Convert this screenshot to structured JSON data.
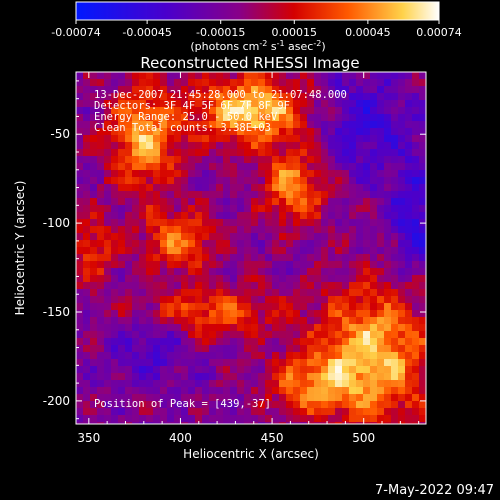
{
  "chart_data": {
    "type": "heatmap",
    "title": "Reconstructed RHESSI Image",
    "xlabel": "Heliocentric X (arcsec)",
    "ylabel": "Heliocentric Y (arcsec)",
    "xlim": [
      343,
      534
    ],
    "ylim": [
      -213,
      -15
    ],
    "x_ticks": [
      350,
      400,
      450,
      500
    ],
    "y_ticks": [
      -50,
      -100,
      -150,
      -200
    ],
    "colorbar": {
      "label_main": "(photons cm",
      "label_exp1": "-2",
      "label_mid1": " s",
      "label_exp2": "-1",
      "label_mid2": " asec",
      "label_exp3": "-2",
      "label_end": ")",
      "range": [
        -0.00074,
        0.00074
      ],
      "tick_values": [
        -0.00074,
        -0.00045,
        -0.00015,
        0.00015,
        0.00045,
        0.00074
      ],
      "tick_labels": [
        "-0.00074",
        "-0.00045",
        "-0.00015",
        "0.00015",
        "0.00045",
        "0.00074"
      ]
    },
    "annotations": [
      "13-Dec-2007 21:45:28.000 to 21:07:48.000",
      "Detectors: 3F 4F 5F 6F 7F 8F 9F",
      "Energy Range: 25.0 - 50.0 keV",
      "Clean     Total counts: 3.38E+03"
    ],
    "peak_label": "Position of Peak = [439,-37]",
    "peak": [
      439,
      -37
    ],
    "grid": false,
    "sources": [
      {
        "x": 380,
        "y": -52,
        "amp": 0.0006,
        "sx": 14,
        "sy": 22
      },
      {
        "x": 439,
        "y": -37,
        "amp": 0.00074,
        "sx": 22,
        "sy": 14
      },
      {
        "x": 462,
        "y": -80,
        "amp": 0.0006,
        "sx": 12,
        "sy": 14
      },
      {
        "x": 400,
        "y": -110,
        "amp": 0.0005,
        "sx": 14,
        "sy": 12
      },
      {
        "x": 415,
        "y": -150,
        "amp": 0.00045,
        "sx": 26,
        "sy": 10
      },
      {
        "x": 505,
        "y": -175,
        "amp": 0.0007,
        "sx": 22,
        "sy": 28
      },
      {
        "x": 470,
        "y": -190,
        "amp": 0.00045,
        "sx": 16,
        "sy": 12
      },
      {
        "x": 352,
        "y": -115,
        "amp": 0.00035,
        "sx": 10,
        "sy": 14
      },
      {
        "x": 500,
        "y": -45,
        "amp": -0.0003,
        "sx": 20,
        "sy": 20
      },
      {
        "x": 385,
        "y": -170,
        "amp": -0.00025,
        "sx": 15,
        "sy": 14
      },
      {
        "x": 528,
        "y": -100,
        "amp": -0.00035,
        "sx": 10,
        "sy": 22
      }
    ]
  },
  "footer": {
    "timestamp": "7-May-2022 09:47"
  }
}
